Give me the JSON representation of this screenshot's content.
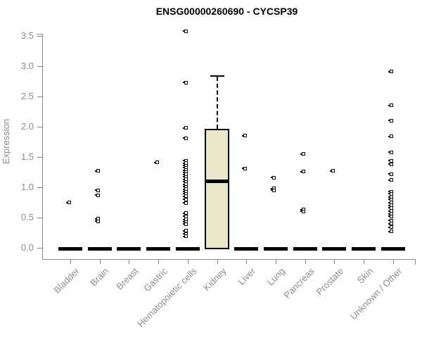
{
  "window": {
    "title": "ENSG00000260690 - CYCSP39"
  },
  "chart_data": {
    "type": "box",
    "title": "ENSG00000260690 - CYCSP39",
    "xlabel": "",
    "ylabel": "Expression",
    "ylim": [
      0,
      3.5
    ],
    "yticks": [
      "0.0",
      "0.5",
      "1.0",
      "1.5",
      "2.0",
      "2.5",
      "3.0",
      "3.5"
    ],
    "grid": false,
    "legend": "none",
    "categories": [
      "Bladder",
      "Brain",
      "Breast",
      "Gastric",
      "Hematopoietic cells",
      "Kidney",
      "Liver",
      "Lung",
      "Pancreas",
      "Prostate",
      "Skin",
      "Unknown / Other"
    ],
    "boxes": [
      {
        "category": "Bladder",
        "q1": 0,
        "median": 0,
        "q3": 0,
        "whisker_low": 0,
        "whisker_high": 0
      },
      {
        "category": "Brain",
        "q1": 0,
        "median": 0,
        "q3": 0,
        "whisker_low": 0,
        "whisker_high": 0
      },
      {
        "category": "Breast",
        "q1": 0,
        "median": 0,
        "q3": 0,
        "whisker_low": 0,
        "whisker_high": 0
      },
      {
        "category": "Gastric",
        "q1": 0,
        "median": 0,
        "q3": 0,
        "whisker_low": 0,
        "whisker_high": 0
      },
      {
        "category": "Hematopoietic cells",
        "q1": 0,
        "median": 0,
        "q3": 0,
        "whisker_low": 0,
        "whisker_high": 0
      },
      {
        "category": "Kidney",
        "q1": 0,
        "median": 1.1,
        "q3": 1.97,
        "whisker_low": 0,
        "whisker_high": 2.83
      },
      {
        "category": "Liver",
        "q1": 0,
        "median": 0,
        "q3": 0,
        "whisker_low": 0,
        "whisker_high": 0
      },
      {
        "category": "Lung",
        "q1": 0,
        "median": 0,
        "q3": 0,
        "whisker_low": 0,
        "whisker_high": 0
      },
      {
        "category": "Pancreas",
        "q1": 0,
        "median": 0,
        "q3": 0,
        "whisker_low": 0,
        "whisker_high": 0
      },
      {
        "category": "Prostate",
        "q1": 0,
        "median": 0,
        "q3": 0,
        "whisker_low": 0,
        "whisker_high": 0
      },
      {
        "category": "Skin",
        "q1": 0,
        "median": 0,
        "q3": 0,
        "whisker_low": 0,
        "whisker_high": 0
      },
      {
        "category": "Unknown / Other",
        "q1": 0,
        "median": 0,
        "q3": 0,
        "whisker_low": 0,
        "whisker_high": 0
      }
    ],
    "outliers": [
      [
        0.75
      ],
      [
        1.27,
        0.95,
        0.87,
        0.48,
        0.44
      ],
      [],
      [
        1.41
      ],
      [
        3.58,
        2.73,
        1.98,
        1.81,
        1.44,
        1.4,
        1.36,
        1.32,
        1.28,
        1.25,
        1.21,
        1.17,
        1.13,
        1.09,
        1.05,
        1.01,
        0.97,
        0.93,
        0.89,
        0.85,
        0.8,
        0.74,
        0.57,
        0.52,
        0.47,
        0.43,
        0.39,
        0.28,
        0.23,
        0.19
      ],
      [],
      [
        1.85,
        1.31
      ],
      [
        1.16,
        0.98,
        0.95
      ],
      [
        1.55,
        1.26,
        0.63,
        0.6
      ],
      [
        1.27
      ],
      [],
      [
        2.91,
        2.35,
        2.1,
        1.84,
        1.58,
        1.44,
        1.38,
        1.22,
        1.12,
        0.93,
        0.89,
        0.84,
        0.8,
        0.75,
        0.7,
        0.66,
        0.61,
        0.56,
        0.52,
        0.45,
        0.4,
        0.34,
        0.27
      ]
    ],
    "colors": {
      "box_fill": "#EAE6C9",
      "box_border": "#000000",
      "median": "#000000",
      "point": "#000000",
      "axis_line": "#878787",
      "axis_text": "#8E8E8E",
      "title_text": "#000000"
    }
  }
}
